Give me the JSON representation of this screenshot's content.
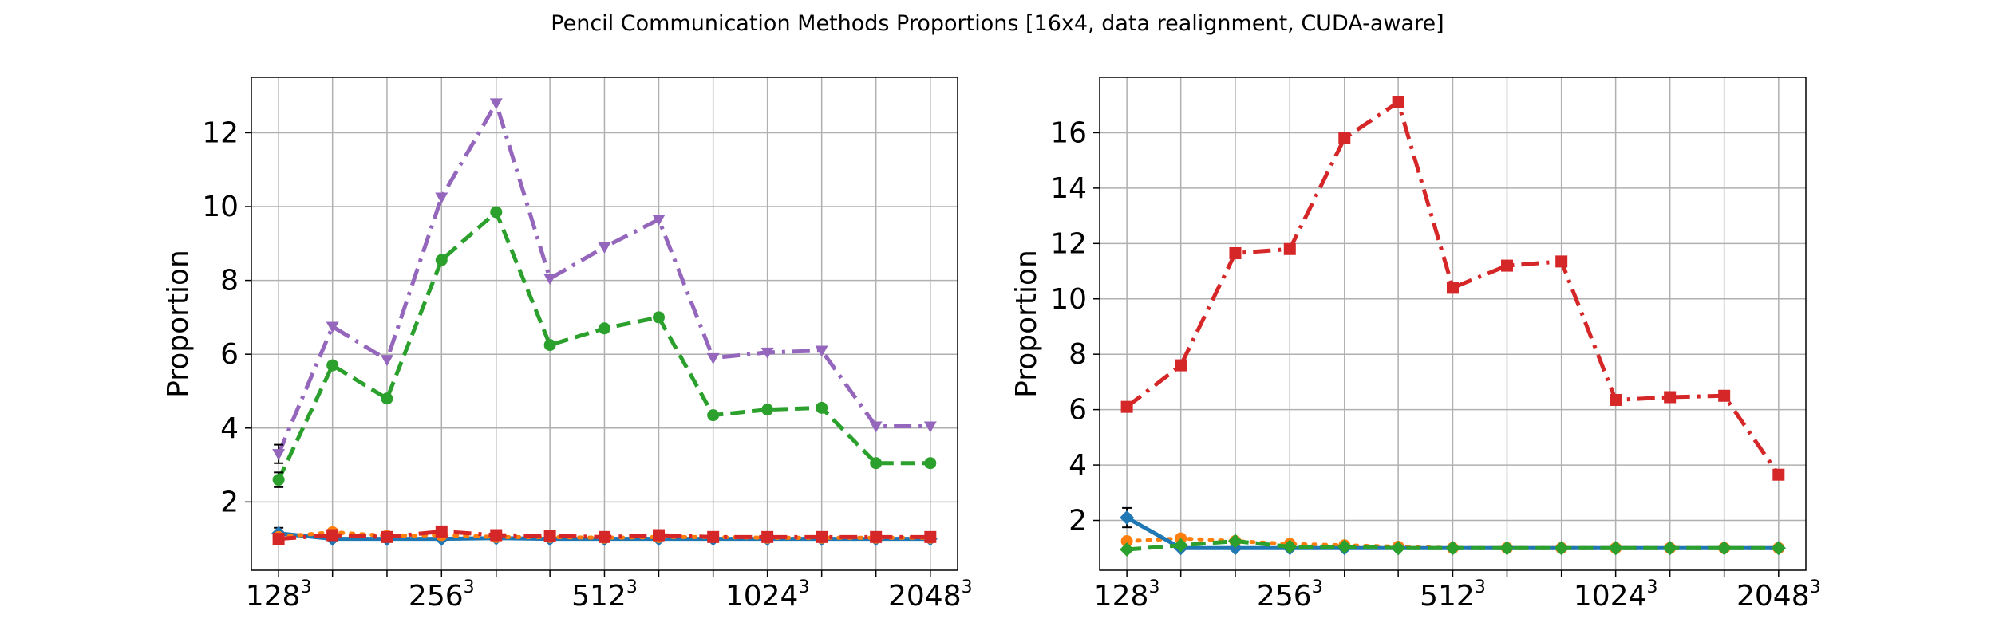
{
  "figure_title": "Pencil Communication Methods Proportions [16x4, data realignment, CUDA-aware]",
  "colors": {
    "blue": "#1f77b4",
    "orange": "#ff7f0e",
    "green": "#2ca02c",
    "red": "#d62728",
    "purple": "#9467bd",
    "grid": "#b0b0b0"
  },
  "chart_data": [
    {
      "type": "line",
      "title": "",
      "xlabel": "",
      "ylabel": "Proportion",
      "x": [
        128,
        161,
        203,
        256,
        323,
        406,
        512,
        645,
        813,
        1024,
        1290,
        1625,
        2048
      ],
      "x_scale": "log",
      "xticks": [
        {
          "base": "128",
          "exp": "3"
        },
        {
          "base": "256",
          "exp": "3"
        },
        {
          "base": "512",
          "exp": "3"
        },
        {
          "base": "1024",
          "exp": "3"
        },
        {
          "base": "2048",
          "exp": "3"
        }
      ],
      "xtick_values": [
        128,
        256,
        512,
        1024,
        2048
      ],
      "xlim": [
        114,
        2300
      ],
      "ylim": [
        0.15,
        13.5
      ],
      "yticks": [
        2,
        4,
        6,
        8,
        10,
        12
      ],
      "grid": true,
      "series": [
        {
          "color": "blue",
          "style": "solid",
          "marker": "diamond",
          "values": [
            1.15,
            1.0,
            1.0,
            1.0,
            1.02,
            1.0,
            1.0,
            1.0,
            1.0,
            1.0,
            1.0,
            1.0,
            1.0
          ],
          "err": [
            0.15,
            0,
            0,
            0,
            0,
            0,
            0,
            0,
            0,
            0,
            0,
            0,
            0
          ]
        },
        {
          "color": "orange",
          "style": "dotted",
          "marker": "circle",
          "values": [
            1.05,
            1.18,
            1.08,
            1.1,
            1.05,
            1.05,
            1.03,
            1.05,
            1.05,
            1.03,
            1.03,
            1.03,
            1.03
          ]
        },
        {
          "color": "red",
          "style": "dashdot",
          "marker": "square",
          "values": [
            1.0,
            1.1,
            1.05,
            1.2,
            1.1,
            1.08,
            1.05,
            1.1,
            1.05,
            1.05,
            1.05,
            1.05,
            1.05
          ]
        },
        {
          "color": "green",
          "style": "dashed",
          "marker": "circle",
          "values": [
            2.6,
            5.7,
            4.8,
            8.55,
            9.85,
            6.25,
            6.7,
            7.0,
            4.35,
            4.5,
            4.55,
            3.05,
            3.05
          ],
          "err": [
            0.2,
            0,
            0,
            0,
            0,
            0,
            0,
            0,
            0,
            0,
            0,
            0,
            0
          ]
        },
        {
          "color": "purple",
          "style": "dashdot",
          "marker": "tri_down",
          "values": [
            3.3,
            6.75,
            5.85,
            10.25,
            12.8,
            8.05,
            8.9,
            9.65,
            5.9,
            6.05,
            6.1,
            4.05,
            4.05
          ],
          "err": [
            0.25,
            0,
            0,
            0,
            0,
            0,
            0,
            0,
            0,
            0,
            0,
            0,
            0
          ]
        }
      ]
    },
    {
      "type": "line",
      "title": "",
      "xlabel": "",
      "ylabel": "Proportion",
      "x": [
        128,
        161,
        203,
        256,
        323,
        406,
        512,
        645,
        813,
        1024,
        1290,
        1625,
        2048
      ],
      "x_scale": "log",
      "xticks": [
        {
          "base": "128",
          "exp": "3"
        },
        {
          "base": "256",
          "exp": "3"
        },
        {
          "base": "512",
          "exp": "3"
        },
        {
          "base": "1024",
          "exp": "3"
        },
        {
          "base": "2048",
          "exp": "3"
        }
      ],
      "xtick_values": [
        128,
        256,
        512,
        1024,
        2048
      ],
      "xlim": [
        114,
        2300
      ],
      "ylim": [
        0.2,
        18.0
      ],
      "yticks": [
        2,
        4,
        6,
        8,
        10,
        12,
        14,
        16
      ],
      "grid": true,
      "series": [
        {
          "color": "red",
          "style": "dashdot",
          "marker": "square",
          "values": [
            6.1,
            7.6,
            11.65,
            11.8,
            15.8,
            17.1,
            10.4,
            11.2,
            11.35,
            6.35,
            6.45,
            6.5,
            3.65
          ]
        },
        {
          "color": "orange",
          "style": "dotted",
          "marker": "circle",
          "values": [
            1.25,
            1.35,
            1.25,
            1.15,
            1.1,
            1.05,
            1.0,
            1.0,
            1.0,
            1.0,
            1.0,
            1.0,
            1.0
          ]
        },
        {
          "color": "blue",
          "style": "solid",
          "marker": "diamond",
          "values": [
            2.1,
            1.0,
            1.0,
            1.0,
            1.0,
            1.0,
            1.0,
            1.0,
            1.0,
            1.0,
            1.0,
            1.0,
            1.0
          ],
          "err": [
            0.35,
            0,
            0,
            0,
            0,
            0,
            0,
            0,
            0,
            0,
            0,
            0,
            0
          ]
        },
        {
          "color": "green",
          "style": "dashed",
          "marker": "diamond",
          "values": [
            0.95,
            1.1,
            1.25,
            1.05,
            1.05,
            1.0,
            1.0,
            1.0,
            1.0,
            1.0,
            1.0,
            1.0,
            1.0
          ]
        }
      ]
    }
  ]
}
